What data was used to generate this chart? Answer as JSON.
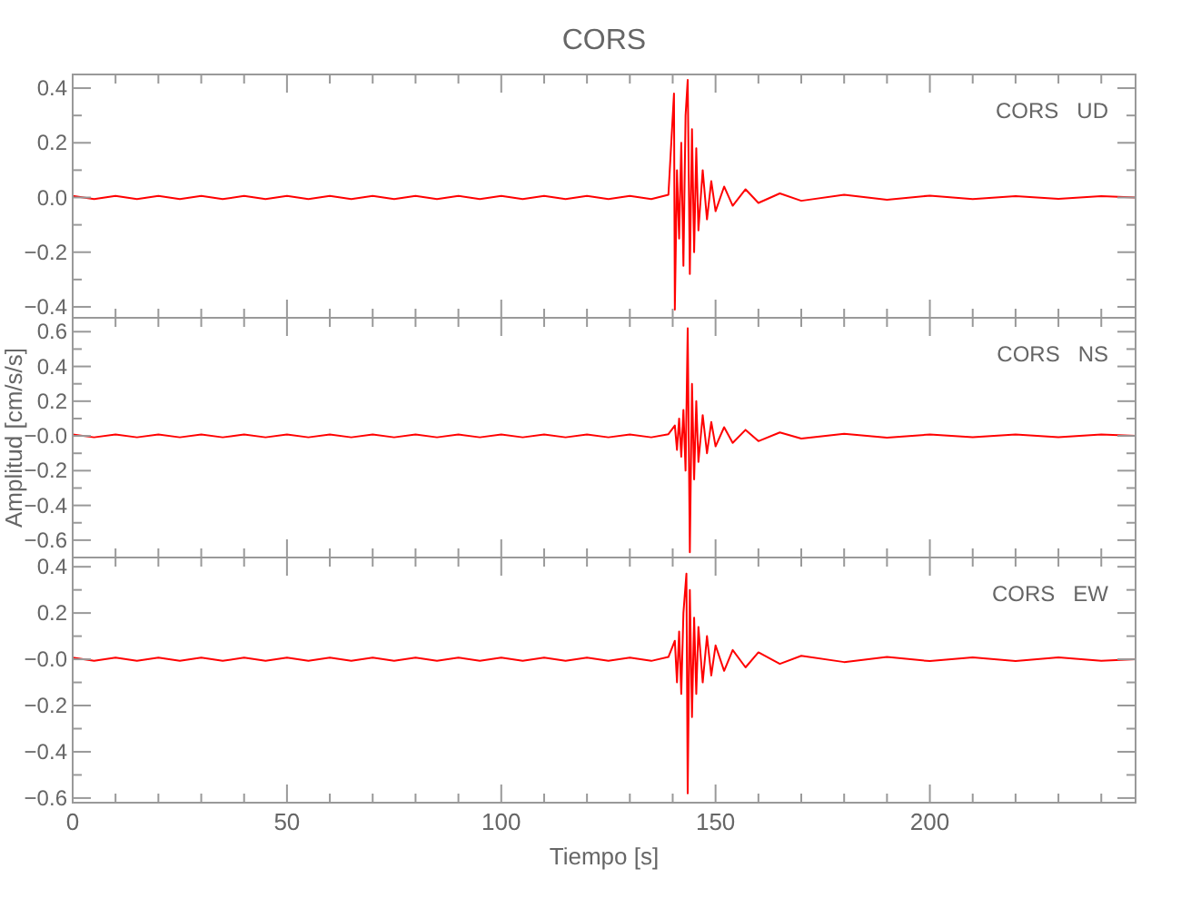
{
  "chart_data": [
    {
      "type": "line",
      "title": "CORS",
      "annotations": [
        "CORS   UD"
      ],
      "xlim": [
        0,
        248
      ],
      "ylim": [
        -0.44,
        0.45
      ],
      "tick_labels": "y",
      "xticks": [
        0,
        {
          "value": 10,
          "label": null
        },
        {
          "value": 20,
          "label": null
        },
        {
          "value": 30,
          "label": null
        },
        {
          "value": 40,
          "label": null
        },
        50,
        {
          "value": 60,
          "label": null
        },
        {
          "value": 70,
          "label": null
        },
        {
          "value": 80,
          "label": null
        },
        {
          "value": 90,
          "label": null
        },
        100,
        {
          "value": 110,
          "label": null
        },
        {
          "value": 120,
          "label": null
        },
        {
          "value": 130,
          "label": null
        },
        {
          "value": 140,
          "label": null
        },
        150,
        {
          "value": 160,
          "label": null
        },
        {
          "value": 170,
          "label": null
        },
        {
          "value": 180,
          "label": null
        },
        {
          "value": 190,
          "label": null
        },
        200,
        {
          "value": 210,
          "label": null
        },
        {
          "value": 220,
          "label": null
        },
        {
          "value": 230,
          "label": null
        },
        {
          "value": 240,
          "label": null
        }
      ],
      "yticks": [
        {
          "value": -0.4,
          "label": "−0.4"
        },
        {
          "value": -0.3,
          "label": null
        },
        {
          "value": -0.2,
          "label": "−0.2"
        },
        {
          "value": -0.1,
          "label": null
        },
        {
          "value": 0,
          "label": "0.0"
        },
        {
          "value": 0.1,
          "label": null
        },
        {
          "value": 0.2,
          "label": "0.2"
        },
        {
          "value": 0.3,
          "label": null
        },
        {
          "value": 0.4,
          "label": "0.4"
        }
      ],
      "series": [
        {
          "color": "#ff0000",
          "x": [
            0,
            5,
            10,
            15,
            20,
            25,
            30,
            35,
            40,
            45,
            50,
            55,
            60,
            65,
            70,
            75,
            80,
            85,
            90,
            95,
            100,
            105,
            110,
            115,
            120,
            125,
            130,
            135,
            139,
            140.3,
            140.5,
            141,
            141.5,
            142,
            142.5,
            143,
            143.5,
            144,
            144.5,
            145,
            145.5,
            146,
            147,
            148,
            149,
            150,
            152,
            154,
            157,
            160,
            165,
            170,
            180,
            190,
            200,
            210,
            220,
            230,
            240,
            248
          ],
          "values": [
            0.006,
            -0.006,
            0.006,
            -0.006,
            0.006,
            -0.006,
            0.006,
            -0.006,
            0.006,
            -0.006,
            0.006,
            -0.006,
            0.006,
            -0.006,
            0.006,
            -0.006,
            0.006,
            -0.006,
            0.006,
            -0.006,
            0.006,
            -0.006,
            0.006,
            -0.006,
            0.006,
            -0.006,
            0.006,
            -0.006,
            0.01,
            0.38,
            -0.41,
            0.1,
            -0.15,
            0.2,
            -0.25,
            0.3,
            0.43,
            -0.28,
            0.25,
            -0.2,
            0.18,
            -0.12,
            0.1,
            -0.08,
            0.06,
            -0.05,
            0.04,
            -0.03,
            0.03,
            -0.02,
            0.015,
            -0.012,
            0.01,
            -0.008,
            0.007,
            -0.006,
            0.005,
            -0.005,
            0.005,
            0
          ]
        }
      ]
    },
    {
      "type": "line",
      "ylabel": "Amplitud  [cm/s/s]",
      "annotations": [
        "CORS   NS"
      ],
      "xlim": [
        0,
        248
      ],
      "ylim": [
        -0.7,
        0.68
      ],
      "tick_labels": "y",
      "xticks": [
        0,
        {
          "value": 10,
          "label": null
        },
        {
          "value": 20,
          "label": null
        },
        {
          "value": 30,
          "label": null
        },
        {
          "value": 40,
          "label": null
        },
        50,
        {
          "value": 60,
          "label": null
        },
        {
          "value": 70,
          "label": null
        },
        {
          "value": 80,
          "label": null
        },
        {
          "value": 90,
          "label": null
        },
        100,
        {
          "value": 110,
          "label": null
        },
        {
          "value": 120,
          "label": null
        },
        {
          "value": 130,
          "label": null
        },
        {
          "value": 140,
          "label": null
        },
        150,
        {
          "value": 160,
          "label": null
        },
        {
          "value": 170,
          "label": null
        },
        {
          "value": 180,
          "label": null
        },
        {
          "value": 190,
          "label": null
        },
        200,
        {
          "value": 210,
          "label": null
        },
        {
          "value": 220,
          "label": null
        },
        {
          "value": 230,
          "label": null
        },
        {
          "value": 240,
          "label": null
        }
      ],
      "yticks": [
        {
          "value": -0.6,
          "label": "−0.6"
        },
        {
          "value": -0.5,
          "label": null
        },
        {
          "value": -0.4,
          "label": "−0.4"
        },
        {
          "value": -0.3,
          "label": null
        },
        {
          "value": -0.2,
          "label": "−0.2"
        },
        {
          "value": -0.1,
          "label": null
        },
        {
          "value": 0,
          "label": "−0.0"
        },
        {
          "value": 0.1,
          "label": null
        },
        {
          "value": 0.2,
          "label": "0.2"
        },
        {
          "value": 0.3,
          "label": null
        },
        {
          "value": 0.4,
          "label": "0.4"
        },
        {
          "value": 0.5,
          "label": null
        },
        {
          "value": 0.6,
          "label": "0.6"
        }
      ],
      "series": [
        {
          "color": "#ff0000",
          "x": [
            0,
            5,
            10,
            15,
            20,
            25,
            30,
            35,
            40,
            45,
            50,
            55,
            60,
            65,
            70,
            75,
            80,
            85,
            90,
            95,
            100,
            105,
            110,
            115,
            120,
            125,
            130,
            135,
            139,
            140.5,
            141,
            141.5,
            142,
            142.5,
            143,
            143.5,
            144,
            144.5,
            145,
            145.5,
            146,
            147,
            148,
            149,
            150,
            152,
            154,
            157,
            160,
            165,
            170,
            180,
            190,
            200,
            210,
            220,
            230,
            240,
            248
          ],
          "values": [
            0.008,
            -0.008,
            0.008,
            -0.008,
            0.008,
            -0.008,
            0.008,
            -0.008,
            0.008,
            -0.008,
            0.008,
            -0.008,
            0.008,
            -0.008,
            0.008,
            -0.008,
            0.008,
            -0.008,
            0.008,
            -0.008,
            0.008,
            -0.008,
            0.008,
            -0.008,
            0.008,
            -0.008,
            0.008,
            -0.008,
            0.01,
            0.06,
            -0.08,
            0.1,
            -0.12,
            0.15,
            -0.2,
            0.62,
            -0.67,
            0.3,
            -0.25,
            0.2,
            -0.15,
            0.12,
            -0.1,
            0.08,
            -0.06,
            0.05,
            -0.04,
            0.035,
            -0.03,
            0.02,
            -0.015,
            0.012,
            -0.01,
            0.008,
            -0.008,
            0.008,
            -0.008,
            0.008,
            0
          ]
        }
      ]
    },
    {
      "type": "line",
      "xlabel": "Tiempo  [s]",
      "annotations": [
        "CORS   EW"
      ],
      "xlim": [
        0,
        248
      ],
      "ylim": [
        -0.62,
        0.44
      ],
      "xticks": [
        0,
        {
          "value": 10,
          "label": null
        },
        {
          "value": 20,
          "label": null
        },
        {
          "value": 30,
          "label": null
        },
        {
          "value": 40,
          "label": null
        },
        50,
        {
          "value": 60,
          "label": null
        },
        {
          "value": 70,
          "label": null
        },
        {
          "value": 80,
          "label": null
        },
        {
          "value": 90,
          "label": null
        },
        100,
        {
          "value": 110,
          "label": null
        },
        {
          "value": 120,
          "label": null
        },
        {
          "value": 130,
          "label": null
        },
        {
          "value": 140,
          "label": null
        },
        150,
        {
          "value": 160,
          "label": null
        },
        {
          "value": 170,
          "label": null
        },
        {
          "value": 180,
          "label": null
        },
        {
          "value": 190,
          "label": null
        },
        200,
        {
          "value": 210,
          "label": null
        },
        {
          "value": 220,
          "label": null
        },
        {
          "value": 230,
          "label": null
        },
        {
          "value": 240,
          "label": null
        }
      ],
      "yticks": [
        {
          "value": -0.6,
          "label": "−0.6"
        },
        {
          "value": -0.5,
          "label": null
        },
        {
          "value": -0.4,
          "label": "−0.4"
        },
        {
          "value": -0.3,
          "label": null
        },
        {
          "value": -0.2,
          "label": "−0.2"
        },
        {
          "value": -0.1,
          "label": null
        },
        {
          "value": 0,
          "label": "−0.0"
        },
        {
          "value": 0.1,
          "label": null
        },
        {
          "value": 0.2,
          "label": "0.2"
        },
        {
          "value": 0.3,
          "label": null
        },
        {
          "value": 0.4,
          "label": "0.4"
        }
      ],
      "series": [
        {
          "color": "#ff0000",
          "x": [
            0,
            5,
            10,
            15,
            20,
            25,
            30,
            35,
            40,
            45,
            50,
            55,
            60,
            65,
            70,
            75,
            80,
            85,
            90,
            95,
            100,
            105,
            110,
            115,
            120,
            125,
            130,
            135,
            139,
            140.5,
            141,
            141.5,
            142,
            142.5,
            143.2,
            143.5,
            144,
            144.5,
            145,
            145.5,
            146,
            147,
            148,
            149,
            150,
            152,
            154,
            157,
            160,
            165,
            170,
            180,
            190,
            200,
            210,
            220,
            230,
            240,
            248
          ],
          "values": [
            0.007,
            -0.007,
            0.007,
            -0.007,
            0.007,
            -0.007,
            0.007,
            -0.007,
            0.007,
            -0.007,
            0.007,
            -0.007,
            0.007,
            -0.007,
            0.007,
            -0.007,
            0.007,
            -0.007,
            0.007,
            -0.007,
            0.007,
            -0.007,
            0.007,
            -0.007,
            0.007,
            -0.007,
            0.007,
            -0.007,
            0.01,
            0.08,
            -0.1,
            0.12,
            -0.15,
            0.2,
            0.37,
            -0.58,
            0.3,
            -0.25,
            0.18,
            -0.15,
            0.14,
            -0.1,
            0.1,
            -0.07,
            0.06,
            -0.05,
            0.04,
            -0.035,
            0.03,
            -0.02,
            0.015,
            -0.012,
            0.01,
            -0.008,
            0.008,
            -0.008,
            0.008,
            -0.007,
            0
          ]
        }
      ]
    }
  ]
}
